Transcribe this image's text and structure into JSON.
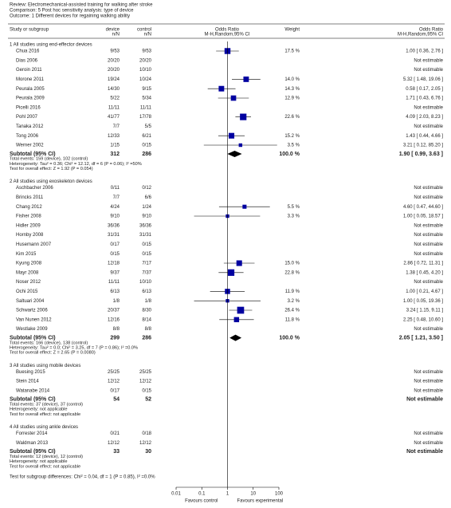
{
  "chart_data": {
    "type": "forest",
    "review": "Review:  Electromechanical-assisted training for walking after stroke",
    "comparison": "Comparison:  5 Post hoc sensitivity analysis: type of device",
    "outcome": "Outcome:  1 Different devices for regaining walking ability",
    "columns": {
      "study": "Study or subgroup",
      "device": "device",
      "device_sub": "n/N",
      "control": "control",
      "control_sub": "n/N",
      "plot": "Odds Ratio",
      "plot_sub": "M-H,Random,95% CI",
      "weight": "Weight",
      "effect": "Odds Ratio",
      "effect_sub": "M-H,Random,95% CI"
    },
    "xlim": [
      0.01,
      100
    ],
    "xticks": [
      0.01,
      0.1,
      1,
      10,
      100
    ],
    "log_scale": true,
    "square_color": "#0000a0",
    "favours_left": "Favours control",
    "favours_right": "Favours experimental",
    "subgroups": [
      {
        "title": "1 All studies using end-effector devices",
        "studies": [
          {
            "name": "Chua 2016",
            "device": "9/53",
            "control": "9/53",
            "weight": 17.5,
            "weight_label": "17.5 %",
            "or": 1.0,
            "ci": [
              0.36,
              2.76
            ],
            "or_label": "1.00 [ 0.36, 2.76 ]"
          },
          {
            "name": "Dias 2006",
            "device": "20/20",
            "control": "20/20",
            "or_label": "Not estimable"
          },
          {
            "name": "Geroin 2011",
            "device": "20/20",
            "control": "10/10",
            "or_label": "Not estimable"
          },
          {
            "name": "Morone 2011",
            "device": "19/24",
            "control": "10/24",
            "weight": 14.0,
            "weight_label": "14.0 %",
            "or": 5.32,
            "ci": [
              1.48,
              19.06
            ],
            "or_label": "5.32 [ 1.48, 19.06 ]"
          },
          {
            "name": "Peurala 2005",
            "device": "14/30",
            "control": "9/15",
            "weight": 14.3,
            "weight_label": "14.3 %",
            "or": 0.58,
            "ci": [
              0.17,
              2.05
            ],
            "or_label": "0.58 [ 0.17, 2.05 ]"
          },
          {
            "name": "Peurala 2009",
            "device": "5/22",
            "control": "5/34",
            "weight": 12.9,
            "weight_label": "12.9 %",
            "or": 1.71,
            "ci": [
              0.43,
              6.76
            ],
            "or_label": "1.71 [ 0.43, 6.76 ]"
          },
          {
            "name": "Picelli 2016",
            "device": "11/11",
            "control": "11/11",
            "or_label": "Not estimable"
          },
          {
            "name": "Pohl 2007",
            "device": "41/77",
            "control": "17/78",
            "weight": 22.6,
            "weight_label": "22.6 %",
            "or": 4.09,
            "ci": [
              2.03,
              8.23
            ],
            "or_label": "4.09 [ 2.03, 8.23 ]"
          },
          {
            "name": "Tanaka 2012",
            "device": "7/7",
            "control": "5/5",
            "or_label": "Not estimable"
          },
          {
            "name": "Tong 2006",
            "device": "12/33",
            "control": "6/21",
            "weight": 15.2,
            "weight_label": "15.2 %",
            "or": 1.43,
            "ci": [
              0.44,
              4.66
            ],
            "or_label": "1.43 [ 0.44, 4.66 ]"
          },
          {
            "name": "Werner 2002",
            "device": "1/15",
            "control": "0/15",
            "weight": 3.5,
            "weight_label": "3.5 %",
            "or": 3.21,
            "ci": [
              0.12,
              85.2
            ],
            "or_label": "3.21 [ 0.12, 85.20 ]"
          }
        ],
        "subtotal": {
          "label": "Subtotal (95% CI)",
          "device": 312,
          "control": 286,
          "weight_label": "100.0 %",
          "or": 1.9,
          "ci": [
            0.99,
            3.63
          ],
          "or_label": "1.90 [ 0.99, 3.63 ]"
        },
        "notes": [
          "Total events: 159 (device), 102 (control)",
          "Heterogeneity: Tau² = 0.36; Chi² = 12.12, df = 6 (P = 0.06); I² =50%",
          "Test for overall effect: Z = 1.92 (P = 0.054)"
        ]
      },
      {
        "title": "2 All studies using exoskeleton devices",
        "studies": [
          {
            "name": "Aschbacher 2006",
            "device": "0/11",
            "control": "0/12",
            "or_label": "Not estimable"
          },
          {
            "name": "Brincks 2011",
            "device": "7/7",
            "control": "6/6",
            "or_label": "Not estimable"
          },
          {
            "name": "Chang 2012",
            "device": "4/24",
            "control": "1/24",
            "weight": 5.5,
            "weight_label": "5.5 %",
            "or": 4.6,
            "ci": [
              0.47,
              44.6
            ],
            "or_label": "4.60 [ 0.47, 44.60 ]"
          },
          {
            "name": "Fisher 2008",
            "device": "9/10",
            "control": "9/10",
            "weight": 3.3,
            "weight_label": "3.3 %",
            "or": 1.0,
            "ci": [
              0.05,
              18.57
            ],
            "or_label": "1.00 [ 0.05, 18.57 ]"
          },
          {
            "name": "Hidler 2009",
            "device": "36/36",
            "control": "36/36",
            "or_label": "Not estimable"
          },
          {
            "name": "Hornby 2008",
            "device": "31/31",
            "control": "31/31",
            "or_label": "Not estimable"
          },
          {
            "name": "Husemann 2007",
            "device": "0/17",
            "control": "0/15",
            "or_label": "Not estimable"
          },
          {
            "name": "Kim 2015",
            "device": "0/15",
            "control": "0/15",
            "or_label": "Not estimable"
          },
          {
            "name": "Kyung 2008",
            "device": "12/18",
            "control": "7/17",
            "weight": 15.0,
            "weight_label": "15.0 %",
            "or": 2.86,
            "ci": [
              0.72,
              11.31
            ],
            "or_label": "2.86 [ 0.72, 11.31 ]"
          },
          {
            "name": "Mayr 2008",
            "device": "9/37",
            "control": "7/37",
            "weight": 22.8,
            "weight_label": "22.8 %",
            "or": 1.38,
            "ci": [
              0.45,
              4.2
            ],
            "or_label": "1.38 [ 0.45, 4.20 ]"
          },
          {
            "name": "Noser 2012",
            "device": "11/11",
            "control": "10/10",
            "or_label": "Not estimable"
          },
          {
            "name": "Ochi 2015",
            "device": "6/13",
            "control": "6/13",
            "weight": 11.9,
            "weight_label": "11.9 %",
            "or": 1.0,
            "ci": [
              0.21,
              4.67
            ],
            "or_label": "1.00 [ 0.21, 4.67 ]"
          },
          {
            "name": "Saltuari 2004",
            "device": "1/8",
            "control": "1/8",
            "weight": 3.2,
            "weight_label": "3.2 %",
            "or": 1.0,
            "ci": [
              0.05,
              19.36
            ],
            "or_label": "1.00 [ 0.05, 19.36 ]"
          },
          {
            "name": "Schwartz 2006",
            "device": "20/37",
            "control": "8/30",
            "weight": 26.4,
            "weight_label": "26.4 %",
            "or": 3.24,
            "ci": [
              1.15,
              9.11
            ],
            "or_label": "3.24 [ 1.15, 9.11 ]"
          },
          {
            "name": "Van Nunen 2012",
            "device": "12/16",
            "control": "8/14",
            "weight": 11.8,
            "weight_label": "11.8 %",
            "or": 2.25,
            "ci": [
              0.48,
              10.6
            ],
            "or_label": "2.25 [ 0.48, 10.60 ]"
          },
          {
            "name": "Westlake 2009",
            "device": "8/8",
            "control": "8/8",
            "or_label": "Not estimable"
          }
        ],
        "subtotal": {
          "label": "Subtotal (95% CI)",
          "device": 299,
          "control": 286,
          "weight_label": "100.0 %",
          "or": 2.05,
          "ci": [
            1.21,
            3.5
          ],
          "or_label": "2.05 [ 1.21, 3.50 ]"
        },
        "notes": [
          "Total events: 166 (device), 138 (control)",
          "Heterogeneity: Tau² = 0.0; Chi² = 3.25, df = 7 (P = 0.86); I² =0.0%",
          "Test for overall effect: Z = 2.65 (P = 0.0080)"
        ]
      },
      {
        "title": "3 All studies using mobile devices",
        "studies": [
          {
            "name": "Buesing 2015",
            "device": "25/25",
            "control": "25/25",
            "or_label": "Not estimable"
          },
          {
            "name": "Stein 2014",
            "device": "12/12",
            "control": "12/12",
            "or_label": "Not estimable"
          },
          {
            "name": "Watanabe 2014",
            "device": "0/17",
            "control": "0/15",
            "or_label": "Not estimable"
          }
        ],
        "subtotal": {
          "label": "Subtotal (95% CI)",
          "device": 54,
          "control": 52,
          "or_label": "Not estimable"
        },
        "notes": [
          "Total events: 37 (device), 37 (control)",
          "Heterogeneity: not applicable",
          "Test for overall effect: not applicable"
        ]
      },
      {
        "title": "4 All studies using ankle devices",
        "studies": [
          {
            "name": "Forrester 2014",
            "device": "0/21",
            "control": "0/18",
            "or_label": "Not estimable"
          },
          {
            "name": "Waldman 2013",
            "device": "12/12",
            "control": "12/12",
            "or_label": "Not estimable"
          }
        ],
        "subtotal": {
          "label": "Subtotal (95% CI)",
          "device": 33,
          "control": 30,
          "or_label": "Not estimable"
        },
        "notes": [
          "Total events: 12 (device), 12 (control)",
          "Heterogeneity: not applicable",
          "Test for overall effect: not applicable"
        ]
      }
    ],
    "subgroup_test": "Test for subgroup differences: Chi² = 0.04, df = 1 (P = 0.85), I² =0.0%"
  }
}
